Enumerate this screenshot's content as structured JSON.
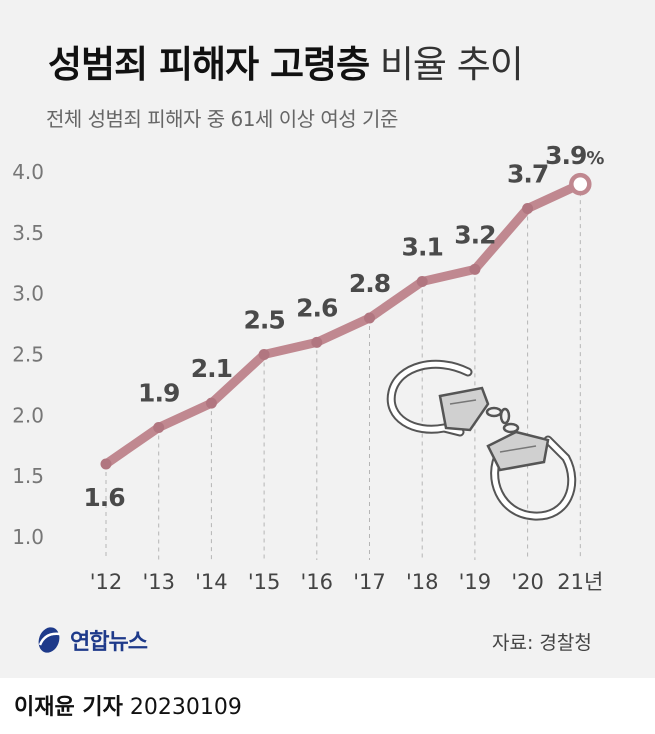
{
  "header": {
    "title_bold": "성범죄 피해자 고령층",
    "title_light": "비율 추이",
    "subtitle": "전체 성범죄 피해자 중 61세 이상 여성 기준"
  },
  "footer": {
    "logo_text": "연합뉴스",
    "source": "자료: 경찰청",
    "reporter": "이재윤 기자",
    "date": "20230109"
  },
  "chart_data": {
    "type": "line",
    "title": "성범죄 피해자 고령층 비율 추이",
    "subtitle": "전체 성범죄 피해자 중 61세 이상 여성 기준",
    "categories": [
      "'12",
      "'13",
      "'14",
      "'15",
      "'16",
      "'17",
      "'18",
      "'19",
      "'20",
      "21년"
    ],
    "series": [
      {
        "values": [
          1.6,
          1.9,
          2.1,
          2.5,
          2.6,
          2.8,
          3.1,
          3.2,
          3.7,
          3.9
        ]
      }
    ],
    "data_labels": [
      "1.6",
      "1.9",
      "2.1",
      "2.5",
      "2.6",
      "2.8",
      "3.1",
      "3.2",
      "3.7",
      "3.9"
    ],
    "last_label_suffix": "%",
    "yticks": [
      "1.0",
      "1.5",
      "2.0",
      "2.5",
      "3.0",
      "3.5",
      "4.0"
    ],
    "ylim": [
      1.0,
      4.0
    ],
    "grid": "vertical dashed lines per category",
    "colors": {
      "line": "#c08890",
      "marker": "#b17680",
      "last_marker_fill": "#ffffff",
      "label": "#4a4a4a"
    }
  },
  "illustration": {
    "icon": "handcuffs-icon"
  }
}
